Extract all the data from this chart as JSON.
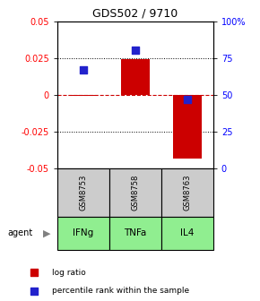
{
  "title": "GDS502 / 9710",
  "samples": [
    "GSM8753",
    "GSM8758",
    "GSM8763"
  ],
  "agents": [
    "IFNg",
    "TNFa",
    "IL4"
  ],
  "log_ratios": [
    -0.001,
    0.024,
    -0.043
  ],
  "percentile_ranks": [
    0.67,
    0.8,
    0.47
  ],
  "ylim_left": [
    -0.05,
    0.05
  ],
  "ylim_right": [
    0,
    1
  ],
  "yticks_left": [
    -0.05,
    -0.025,
    0,
    0.025,
    0.05
  ],
  "yticks_right": [
    0.0,
    0.25,
    0.5,
    0.75,
    1.0
  ],
  "ytick_labels_left": [
    "-0.05",
    "-0.025",
    "0",
    "0.025",
    "0.05"
  ],
  "ytick_labels_right": [
    "0",
    "25",
    "50",
    "75",
    "100%"
  ],
  "bar_color": "#cc0000",
  "dot_color": "#2222cc",
  "hline_color": "#cc0000",
  "grid_color": "#000000",
  "agent_color": "#90ee90",
  "sample_bg_color": "#cccccc",
  "bar_width": 0.55,
  "dot_size": 35,
  "title_fontsize": 9,
  "tick_fontsize": 7,
  "label_fontsize": 7,
  "legend_fontsize": 6.5
}
